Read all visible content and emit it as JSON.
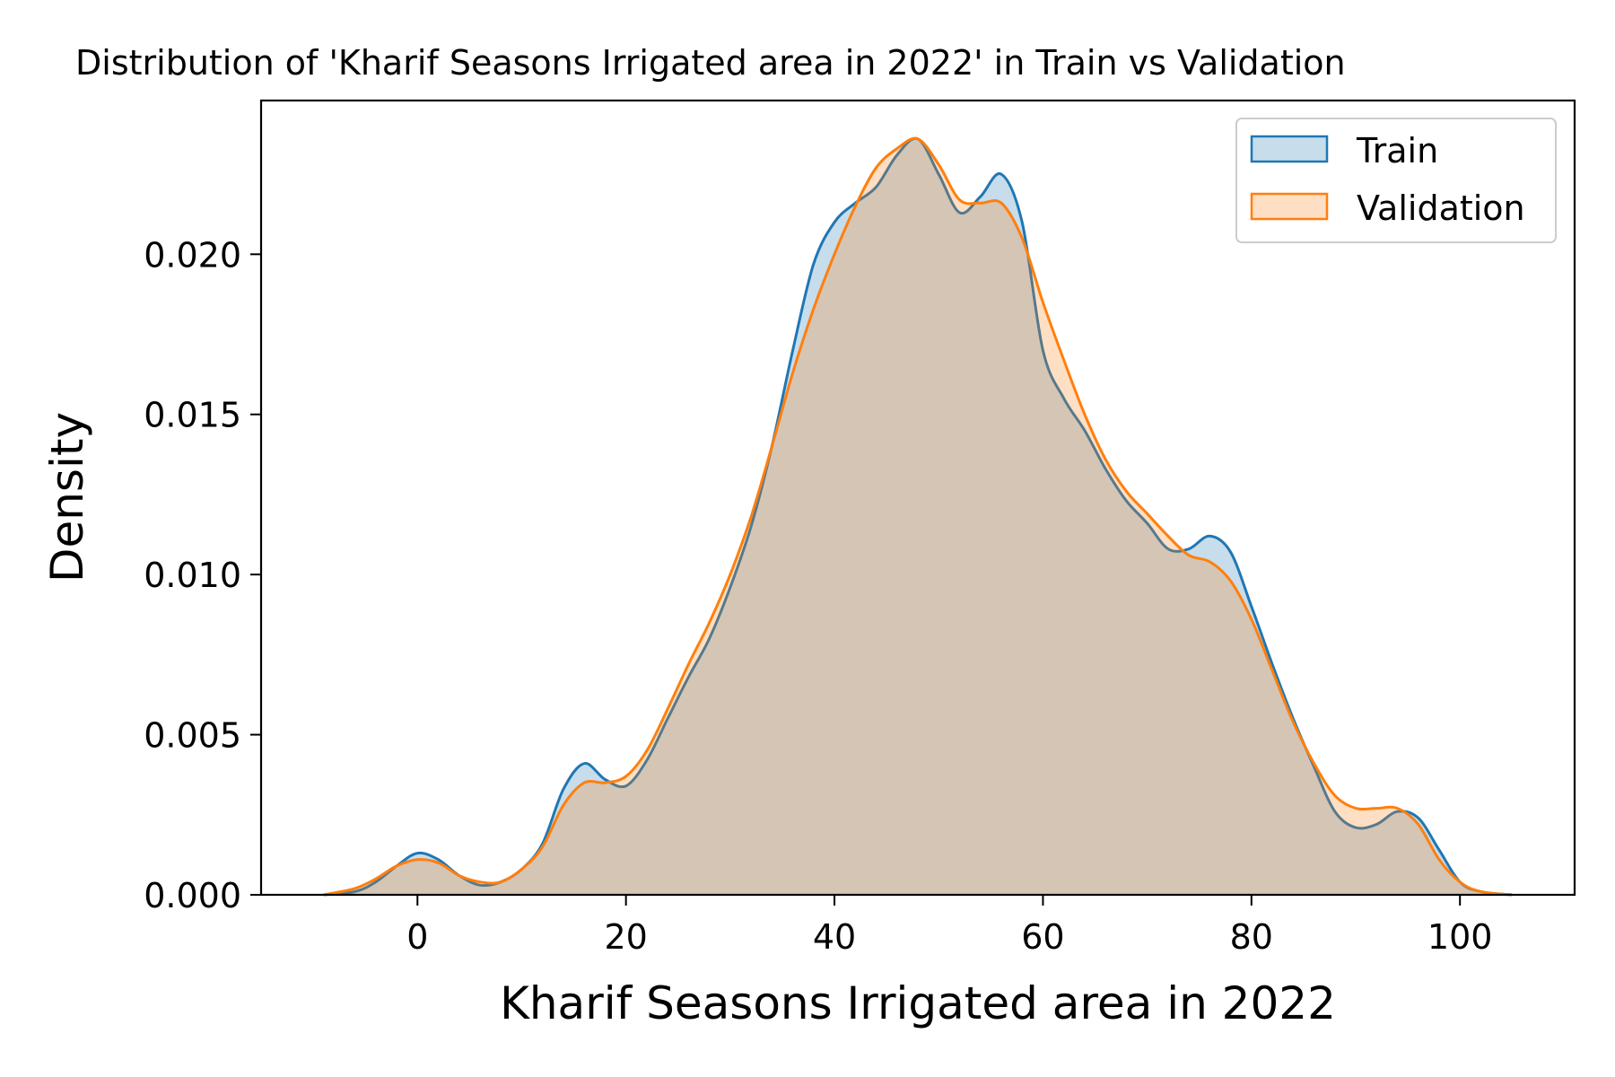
{
  "chart_data": {
    "type": "area",
    "title": "Distribution of 'Kharif Seasons  Irrigated area in 2022' in Train vs Validation",
    "xlabel": "Kharif Seasons  Irrigated area in 2022",
    "ylabel": "Density",
    "xlim": [
      -15,
      111
    ],
    "ylim": [
      0,
      0.0248
    ],
    "xticks": [
      0,
      20,
      40,
      60,
      80,
      100
    ],
    "xtick_labels": [
      "0",
      "20",
      "40",
      "60",
      "80",
      "100"
    ],
    "yticks": [
      0.0,
      0.005,
      0.01,
      0.015,
      0.02
    ],
    "ytick_labels": [
      "0.000",
      "0.005",
      "0.010",
      "0.015",
      "0.020"
    ],
    "grid": false,
    "legend_position": "top-right",
    "series": [
      {
        "name": "Train",
        "color": "#1f77b4",
        "x": [
          -9,
          -6,
          -4,
          -2,
          0,
          2,
          4,
          6,
          8,
          10,
          12,
          14,
          16,
          18,
          20,
          22,
          24,
          26,
          28,
          30,
          32,
          34,
          36,
          38,
          40,
          42,
          44,
          46,
          48,
          50,
          52,
          54,
          56,
          58,
          60,
          62,
          64,
          66,
          68,
          70,
          72,
          74,
          76,
          78,
          80,
          82,
          84,
          86,
          88,
          90,
          92,
          94,
          96,
          98,
          100,
          102,
          105
        ],
        "y": [
          0.0,
          0.0001,
          0.0004,
          0.0009,
          0.0013,
          0.0011,
          0.0006,
          0.0003,
          0.0004,
          0.0008,
          0.0016,
          0.0033,
          0.0041,
          0.0036,
          0.0034,
          0.0042,
          0.0055,
          0.0068,
          0.008,
          0.0096,
          0.0115,
          0.014,
          0.017,
          0.0197,
          0.021,
          0.0216,
          0.0221,
          0.0231,
          0.0236,
          0.0225,
          0.0213,
          0.0218,
          0.0225,
          0.021,
          0.017,
          0.0155,
          0.0145,
          0.0133,
          0.0123,
          0.0116,
          0.0108,
          0.0108,
          0.0112,
          0.0107,
          0.009,
          0.0072,
          0.0055,
          0.004,
          0.0026,
          0.0021,
          0.0022,
          0.0026,
          0.0024,
          0.0014,
          0.0004,
          0.0001,
          0.0
        ]
      },
      {
        "name": "Validation",
        "color": "#ff7f0e",
        "x": [
          -9,
          -6,
          -4,
          -2,
          0,
          2,
          4,
          6,
          8,
          10,
          12,
          14,
          16,
          18,
          20,
          22,
          24,
          26,
          28,
          30,
          32,
          34,
          36,
          38,
          40,
          42,
          44,
          46,
          48,
          50,
          52,
          54,
          56,
          58,
          60,
          62,
          64,
          66,
          68,
          70,
          72,
          74,
          76,
          78,
          80,
          82,
          84,
          86,
          88,
          90,
          92,
          94,
          96,
          98,
          100,
          102,
          105
        ],
        "y": [
          0.0,
          0.0002,
          0.0005,
          0.0009,
          0.0011,
          0.001,
          0.0006,
          0.0004,
          0.0004,
          0.0008,
          0.0015,
          0.0028,
          0.0035,
          0.0035,
          0.0037,
          0.0045,
          0.0058,
          0.0072,
          0.0085,
          0.01,
          0.0118,
          0.014,
          0.0163,
          0.0183,
          0.02,
          0.0215,
          0.0227,
          0.0233,
          0.0236,
          0.0228,
          0.0217,
          0.0216,
          0.0216,
          0.0205,
          0.0185,
          0.0167,
          0.015,
          0.0136,
          0.0126,
          0.0119,
          0.0112,
          0.0106,
          0.0104,
          0.0098,
          0.0086,
          0.007,
          0.0054,
          0.0041,
          0.0031,
          0.0027,
          0.0027,
          0.0027,
          0.0022,
          0.0011,
          0.0004,
          0.0001,
          0.0
        ]
      }
    ]
  }
}
